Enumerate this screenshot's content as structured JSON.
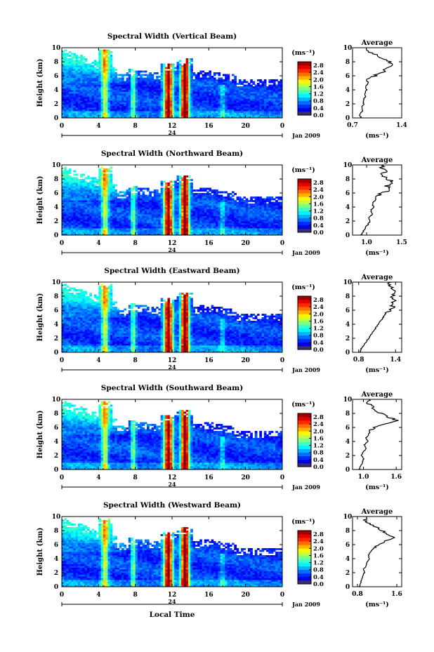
{
  "figure": {
    "x_axis_title": "Local Time",
    "date_label": "Jan 2009",
    "day_label": "24"
  },
  "chart_data": [
    {
      "type": "heatmap",
      "title": "Spectral Width (Vertical Beam)",
      "ylabel": "Height (km)",
      "xlim": [
        0,
        24
      ],
      "ylim": [
        0,
        10
      ],
      "x_ticks": [
        "0",
        "4",
        "8",
        "12",
        "16",
        "20",
        "0"
      ],
      "y_ticks": [
        "0",
        "2",
        "4",
        "6",
        "8",
        "10"
      ],
      "colorbar": {
        "unit": "(ms⁻¹)",
        "range": [
          0,
          3
        ],
        "ticks": [
          "0.0",
          "0.4",
          "0.8",
          "1.2",
          "1.6",
          "2.0",
          "2.4",
          "2.8"
        ]
      },
      "profile": {
        "title": "Average",
        "xlabel": "(ms⁻¹)",
        "xlim": [
          0.7,
          1.4
        ],
        "x_ticks": [
          "0.7",
          "1.4"
        ],
        "values": [
          [
            0,
            0.82
          ],
          [
            0.5,
            0.8
          ],
          [
            1,
            0.84
          ],
          [
            1.5,
            0.83
          ],
          [
            2,
            0.86
          ],
          [
            2.5,
            0.85
          ],
          [
            3,
            0.88
          ],
          [
            3.5,
            0.87
          ],
          [
            4,
            0.9
          ],
          [
            4.5,
            0.89
          ],
          [
            5,
            0.92
          ],
          [
            5.5,
            0.9
          ],
          [
            6,
            1.02
          ],
          [
            6.5,
            1.12
          ],
          [
            7,
            1.18
          ],
          [
            7.5,
            1.28
          ],
          [
            8,
            1.22
          ],
          [
            8.5,
            1.1
          ],
          [
            9,
            1.02
          ],
          [
            9.5,
            0.92
          ],
          [
            10,
            0.9
          ]
        ]
      }
    },
    {
      "type": "heatmap",
      "title": "Spectral Width (Northward Beam)",
      "ylabel": "Height (km)",
      "xlim": [
        0,
        24
      ],
      "ylim": [
        0,
        10
      ],
      "x_ticks": [
        "0",
        "4",
        "8",
        "12",
        "16",
        "20",
        "0"
      ],
      "y_ticks": [
        "0",
        "2",
        "4",
        "6",
        "8",
        "10"
      ],
      "colorbar": {
        "unit": "(ms⁻¹)",
        "range": [
          0,
          3
        ],
        "ticks": [
          "0.0",
          "0.4",
          "0.8",
          "1.2",
          "1.6",
          "2.0",
          "2.4",
          "2.8"
        ]
      },
      "profile": {
        "title": "Average",
        "xlabel": "(ms⁻¹)",
        "xlim": [
          0.8,
          1.5
        ],
        "x_ticks": [
          "1.0",
          "1.5"
        ],
        "values": [
          [
            0,
            0.92
          ],
          [
            0.5,
            0.95
          ],
          [
            1,
            0.98
          ],
          [
            1.5,
            1.02
          ],
          [
            2,
            1.05
          ],
          [
            2.5,
            1.04
          ],
          [
            3,
            1.08
          ],
          [
            3.5,
            1.06
          ],
          [
            4,
            1.1
          ],
          [
            4.5,
            1.08
          ],
          [
            5,
            1.12
          ],
          [
            5.5,
            1.14
          ],
          [
            6,
            1.22
          ],
          [
            6.5,
            1.34
          ],
          [
            7,
            1.28
          ],
          [
            7.5,
            1.38
          ],
          [
            8,
            1.3
          ],
          [
            8.5,
            1.2
          ],
          [
            9,
            1.28
          ],
          [
            9.5,
            1.22
          ],
          [
            10,
            1.25
          ]
        ]
      }
    },
    {
      "type": "heatmap",
      "title": "Spectral Width (Eastward Beam)",
      "ylabel": "Height (km)",
      "xlim": [
        0,
        24
      ],
      "ylim": [
        0,
        10
      ],
      "x_ticks": [
        "0",
        "4",
        "8",
        "12",
        "16",
        "20",
        "0"
      ],
      "y_ticks": [
        "0",
        "2",
        "4",
        "6",
        "8",
        "10"
      ],
      "colorbar": {
        "unit": "(ms⁻¹)",
        "range": [
          0,
          3
        ],
        "ticks": [
          "0.0",
          "0.4",
          "0.8",
          "1.2",
          "1.6",
          "2.0",
          "2.4",
          "2.8"
        ]
      },
      "profile": {
        "title": "Average",
        "xlabel": "(ms⁻¹)",
        "xlim": [
          0.7,
          1.5
        ],
        "x_ticks": [
          "0.8",
          "1.4"
        ],
        "values": [
          [
            0,
            0.82
          ],
          [
            0.5,
            0.84
          ],
          [
            1,
            0.88
          ],
          [
            1.5,
            0.92
          ],
          [
            2,
            0.96
          ],
          [
            2.5,
            1.0
          ],
          [
            3,
            1.04
          ],
          [
            3.5,
            1.08
          ],
          [
            4,
            1.12
          ],
          [
            4.5,
            1.16
          ],
          [
            5,
            1.2
          ],
          [
            5.5,
            1.24
          ],
          [
            6,
            1.3
          ],
          [
            6.5,
            1.36
          ],
          [
            7,
            1.32
          ],
          [
            7.5,
            1.4
          ],
          [
            8,
            1.34
          ],
          [
            8.5,
            1.42
          ],
          [
            9,
            1.36
          ],
          [
            9.5,
            1.3
          ],
          [
            10,
            1.32
          ]
        ]
      }
    },
    {
      "type": "heatmap",
      "title": "Spectral Width (Southward Beam)",
      "ylabel": "Height (km)",
      "xlim": [
        0,
        24
      ],
      "ylim": [
        0,
        10
      ],
      "x_ticks": [
        "0",
        "4",
        "8",
        "12",
        "16",
        "20",
        "0"
      ],
      "y_ticks": [
        "0",
        "2",
        "4",
        "6",
        "8",
        "10"
      ],
      "colorbar": {
        "unit": "(ms⁻¹)",
        "range": [
          0,
          3
        ],
        "ticks": [
          "0.0",
          "0.4",
          "0.8",
          "1.2",
          "1.6",
          "2.0",
          "2.4",
          "2.8"
        ]
      },
      "profile": {
        "title": "Average",
        "xlabel": "(ms⁻¹)",
        "xlim": [
          0.8,
          1.7
        ],
        "x_ticks": [
          "1.0",
          "1.6"
        ],
        "values": [
          [
            0,
            0.92
          ],
          [
            0.5,
            0.95
          ],
          [
            1,
            0.98
          ],
          [
            1.5,
            1.0
          ],
          [
            2,
            0.96
          ],
          [
            2.5,
            1.0
          ],
          [
            3,
            1.05
          ],
          [
            3.5,
            1.02
          ],
          [
            4,
            1.08
          ],
          [
            4.5,
            1.05
          ],
          [
            5,
            1.1
          ],
          [
            5.5,
            1.12
          ],
          [
            6,
            1.2
          ],
          [
            6.5,
            1.4
          ],
          [
            7,
            1.62
          ],
          [
            7.5,
            1.45
          ],
          [
            8,
            1.32
          ],
          [
            8.5,
            1.22
          ],
          [
            9,
            1.15
          ],
          [
            9.5,
            1.08
          ],
          [
            10,
            1.1
          ]
        ]
      }
    },
    {
      "type": "heatmap",
      "title": "Spectral Width (Westward Beam)",
      "ylabel": "Height (km)",
      "xlim": [
        0,
        24
      ],
      "ylim": [
        0,
        10
      ],
      "x_ticks": [
        "0",
        "4",
        "8",
        "12",
        "16",
        "20",
        "0"
      ],
      "y_ticks": [
        "0",
        "2",
        "4",
        "6",
        "8",
        "10"
      ],
      "colorbar": {
        "unit": "(ms⁻¹)",
        "range": [
          0,
          3
        ],
        "ticks": [
          "0.0",
          "0.4",
          "0.8",
          "1.2",
          "1.6",
          "2.0",
          "2.4",
          "2.8"
        ]
      },
      "profile": {
        "title": "Average",
        "xlabel": "(ms⁻¹)",
        "xlim": [
          0.7,
          1.7
        ],
        "x_ticks": [
          "0.8",
          "1.6"
        ],
        "values": [
          [
            0,
            0.84
          ],
          [
            0.5,
            0.86
          ],
          [
            1,
            0.88
          ],
          [
            1.5,
            0.9
          ],
          [
            2,
            0.94
          ],
          [
            2.5,
            0.92
          ],
          [
            3,
            0.98
          ],
          [
            3.5,
            1.0
          ],
          [
            4,
            1.04
          ],
          [
            4.5,
            1.02
          ],
          [
            5,
            1.08
          ],
          [
            5.5,
            1.12
          ],
          [
            6,
            1.22
          ],
          [
            6.5,
            1.38
          ],
          [
            7,
            1.55
          ],
          [
            7.5,
            1.42
          ],
          [
            8,
            1.3
          ],
          [
            8.5,
            1.18
          ],
          [
            9,
            1.05
          ],
          [
            9.5,
            0.95
          ],
          [
            10,
            0.98
          ]
        ]
      }
    }
  ]
}
